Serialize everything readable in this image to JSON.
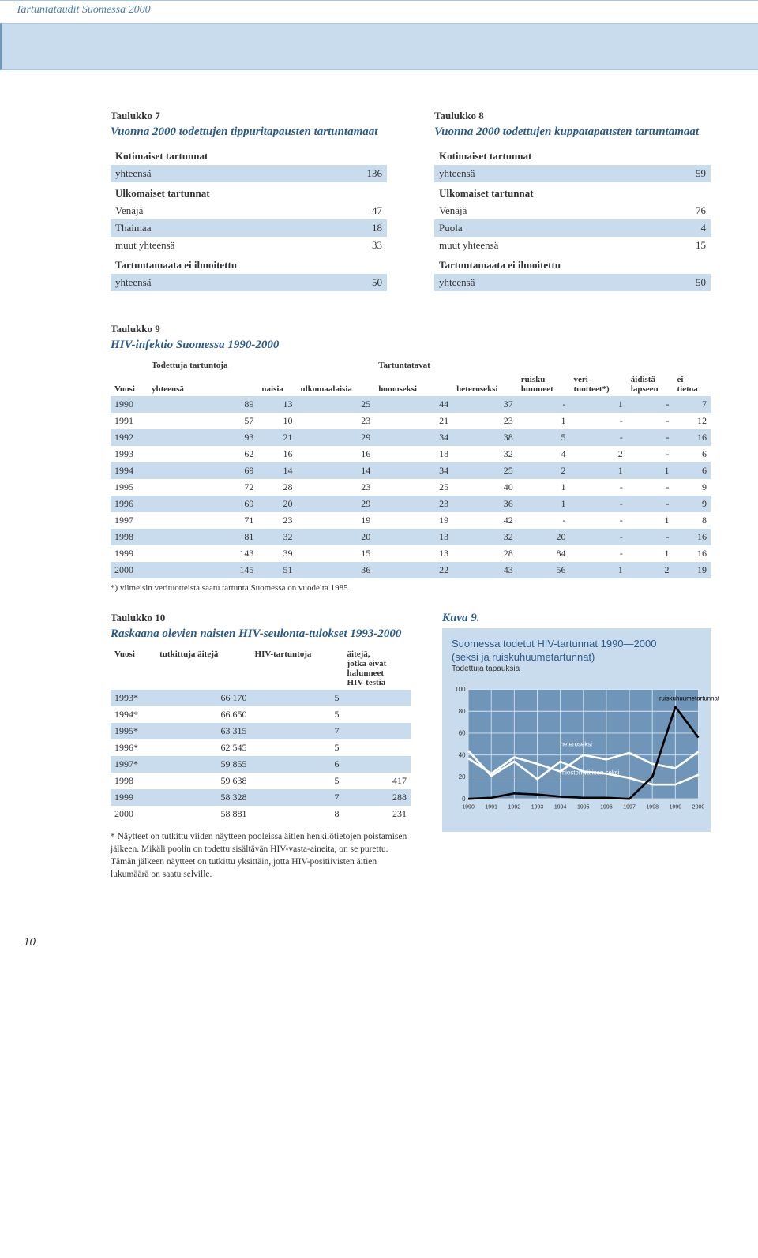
{
  "header": "Tartuntataudit Suomessa 2000",
  "page_number": "10",
  "table7": {
    "label": "Taulukko 7",
    "title": "Vuonna 2000 todettujen tippuritapausten tartuntamaat",
    "sections": [
      {
        "head": "Kotimaiset tartunnat",
        "rows": [
          [
            "yhteensä",
            "136"
          ]
        ]
      },
      {
        "head": "Ulkomaiset tartunnat",
        "rows": [
          [
            "Venäjä",
            "47"
          ],
          [
            "Thaimaa",
            "18"
          ],
          [
            "muut yhteensä",
            "33"
          ]
        ]
      },
      {
        "head": "Tartuntamaata ei ilmoitettu",
        "rows": [
          [
            "yhteensä",
            "50"
          ]
        ]
      }
    ]
  },
  "table8": {
    "label": "Taulukko 8",
    "title": "Vuonna 2000 todettujen kuppatapausten tartuntamaat",
    "sections": [
      {
        "head": "Kotimaiset tartunnat",
        "rows": [
          [
            "yhteensä",
            "59"
          ]
        ]
      },
      {
        "head": "Ulkomaiset tartunnat",
        "rows": [
          [
            "Venäjä",
            "76"
          ],
          [
            "Puola",
            "4"
          ],
          [
            "muut yhteensä",
            "15"
          ]
        ]
      },
      {
        "head": "Tartuntamaata ei ilmoitettu",
        "rows": [
          [
            "yhteensä",
            "50"
          ]
        ]
      }
    ]
  },
  "table9": {
    "label": "Taulukko 9",
    "title": "HIV-infektio Suomessa 1990-2000",
    "super_headers": [
      "",
      "Todettuja tartuntoja",
      "",
      "",
      "Tartuntatavat",
      "",
      "",
      "",
      "",
      ""
    ],
    "headers": [
      "Vuosi",
      "yhteensä",
      "naisia",
      "ulkomaalaisia",
      "homoseksi",
      "heteroseksi",
      "ruisku-\nhuumeet",
      "veri-\ntuotteet*)",
      "äidistä\nlapseen",
      "ei\ntietoa"
    ],
    "rows": [
      [
        "1990",
        "89",
        "13",
        "25",
        "44",
        "37",
        "-",
        "1",
        "-",
        "7"
      ],
      [
        "1991",
        "57",
        "10",
        "23",
        "21",
        "23",
        "1",
        "-",
        "-",
        "12"
      ],
      [
        "1992",
        "93",
        "21",
        "29",
        "34",
        "38",
        "5",
        "-",
        "-",
        "16"
      ],
      [
        "1993",
        "62",
        "16",
        "16",
        "18",
        "32",
        "4",
        "2",
        "-",
        "6"
      ],
      [
        "1994",
        "69",
        "14",
        "14",
        "34",
        "25",
        "2",
        "1",
        "1",
        "6"
      ],
      [
        "1995",
        "72",
        "28",
        "23",
        "25",
        "40",
        "1",
        "-",
        "-",
        "9"
      ],
      [
        "1996",
        "69",
        "20",
        "29",
        "23",
        "36",
        "1",
        "-",
        "-",
        "9"
      ],
      [
        "1997",
        "71",
        "23",
        "19",
        "19",
        "42",
        "-",
        "-",
        "1",
        "8"
      ],
      [
        "1998",
        "81",
        "32",
        "20",
        "13",
        "32",
        "20",
        "-",
        "-",
        "16"
      ],
      [
        "1999",
        "143",
        "39",
        "15",
        "13",
        "28",
        "84",
        "-",
        "1",
        "16"
      ],
      [
        "2000",
        "145",
        "51",
        "36",
        "22",
        "43",
        "56",
        "1",
        "2",
        "19"
      ]
    ],
    "footnote": "*) viimeisin verituotteista saatu tartunta Suomessa on vuodelta 1985."
  },
  "table10": {
    "label": "Taulukko 10",
    "title": "Raskaana olevien naisten HIV-seulonta-tulokset 1993-2000",
    "headers": [
      "Vuosi",
      "tutkittuja äitejä",
      "HIV-tartuntoja",
      "äitejä,\njotka eivät\nhalunneet\nHIV-testiä"
    ],
    "rows": [
      [
        "1993*",
        "66 170",
        "5",
        ""
      ],
      [
        "1994*",
        "66 650",
        "5",
        ""
      ],
      [
        "1995*",
        "63 315",
        "7",
        ""
      ],
      [
        "1996*",
        "62 545",
        "5",
        ""
      ],
      [
        "1997*",
        "59 855",
        "6",
        ""
      ],
      [
        "1998",
        "59 638",
        "5",
        "417"
      ],
      [
        "1999",
        "58 328",
        "7",
        "288"
      ],
      [
        "2000",
        "58 881",
        "8",
        "231"
      ]
    ],
    "footnote": "* Näytteet on tutkittu viiden näytteen pooleissa äitien henkilötietojen poistamisen jälkeen. Mikäli poolin on todettu sisältävän HIV-vasta-aineita, on se purettu. Tämän jälkeen näytteet on tutkittu yksittäin, jotta HIV-positiivisten äitien lukumäärä on saatu selville."
  },
  "kuva9": {
    "label": "Kuva 9.",
    "title": "Suomessa todetut HIV-tartunnat 1990—2000",
    "subtitle_line2": "(seksi ja ruiskuhuumetartunnat)",
    "y_axis_label": "Todettuja tapauksia",
    "type": "line",
    "years": [
      "1990",
      "1991",
      "1992",
      "1993",
      "1994",
      "1995",
      "1996",
      "1997",
      "1998",
      "1999",
      "2000"
    ],
    "ylim": [
      0,
      100
    ],
    "ytick_step": 20,
    "xtick_fontsize": 8,
    "label_fontsize": 9,
    "background_color": "#c9dced",
    "plot_bg": "#6f96b9",
    "grid_color": "#d5e3ef",
    "series": [
      {
        "name": "miesten välinen seksi",
        "color": "#ffffff",
        "width": 3,
        "values": [
          44,
          21,
          34,
          18,
          34,
          25,
          23,
          19,
          13,
          13,
          22
        ],
        "label_x": 4.0,
        "label_y": 22
      },
      {
        "name": "heteroseksi",
        "color": "#ffffff",
        "width": 3,
        "values": [
          37,
          23,
          38,
          32,
          25,
          40,
          36,
          42,
          32,
          28,
          43
        ],
        "label_x": 4.0,
        "label_y": 48
      },
      {
        "name": "ruiskuhuumetartunnat",
        "color": "#000000",
        "width": 3,
        "values": [
          0,
          1,
          5,
          4,
          2,
          1,
          1,
          0,
          20,
          84,
          56
        ],
        "label_x": 8.3,
        "label_y": 90
      }
    ]
  }
}
